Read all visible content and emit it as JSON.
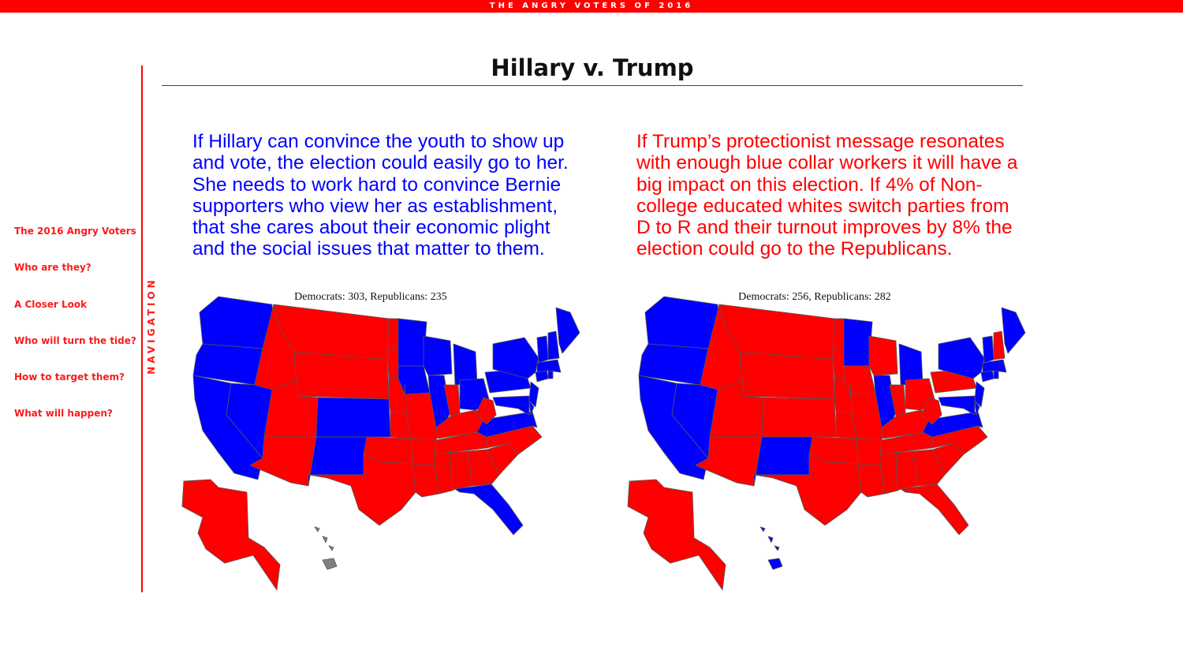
{
  "header": {
    "banner": "THE ANGRY VOTERS OF 2016",
    "title": "Hillary v. Trump"
  },
  "navigation": {
    "label": "NAVIGATION",
    "items": [
      {
        "label": "The 2016 Angry Voters"
      },
      {
        "label": "Who are they?"
      },
      {
        "label": "A Closer Look"
      },
      {
        "label": "Who will turn the tide?"
      },
      {
        "label": "How to target them?"
      },
      {
        "label": "What will happen?"
      }
    ]
  },
  "colors": {
    "democrat": "#0000ff",
    "republican": "#ff0000",
    "unassigned": "#808080",
    "accent": "#ff0000"
  },
  "scenarios": [
    {
      "text": "If Hillary can convince the youth to show up and vote, the election could easily go to her. She needs to work hard to convince Bernie supporters who view her as establishment, that she cares about their economic plight and the social issues that matter to them.",
      "caption": "Democrats: 303, Republicans: 235",
      "democrats": 303,
      "republicans": 235,
      "map": {
        "WA": "D",
        "OR": "D",
        "CA": "D",
        "NV": "D",
        "CO": "D",
        "NM": "D",
        "MN": "D",
        "IA": "D",
        "WI": "D",
        "IL": "D",
        "MI": "D",
        "OH": "D",
        "PA": "D",
        "VA": "D",
        "FL": "D",
        "NY": "D",
        "VT": "D",
        "NH": "D",
        "ME": "D",
        "MA": "D",
        "CT": "D",
        "RI": "D",
        "NJ": "D",
        "DE": "D",
        "MD": "D",
        "ID": "R",
        "MT": "R",
        "WY": "R",
        "UT": "R",
        "AZ": "R",
        "ND": "R",
        "SD": "R",
        "NE": "R",
        "KS": "R",
        "OK": "R",
        "TX": "R",
        "MO": "R",
        "AR": "R",
        "LA": "R",
        "MS": "R",
        "AL": "R",
        "GA": "R",
        "SC": "R",
        "NC": "R",
        "TN": "R",
        "KY": "R",
        "IN": "R",
        "WV": "R",
        "AK": "R",
        "HI": "none"
      }
    },
    {
      "text": "If Trump’s protectionist message resonates with enough blue collar workers it will have a big impact on this election. If 4% of Non-college educated whites switch parties from D to R and their turnout improves by 8% the election could go to the Republicans.",
      "caption": "Democrats: 256, Republicans: 282",
      "democrats": 256,
      "republicans": 282,
      "map": {
        "WA": "D",
        "OR": "D",
        "CA": "D",
        "NV": "D",
        "NM": "D",
        "MN": "D",
        "IL": "D",
        "MI": "D",
        "VA": "D",
        "NY": "D",
        "VT": "D",
        "ME": "D",
        "MA": "D",
        "CT": "D",
        "RI": "D",
        "NJ": "D",
        "DE": "D",
        "MD": "D",
        "HI": "D",
        "ID": "R",
        "MT": "R",
        "WY": "R",
        "UT": "R",
        "AZ": "R",
        "CO": "R",
        "ND": "R",
        "SD": "R",
        "NE": "R",
        "KS": "R",
        "OK": "R",
        "TX": "R",
        "MO": "R",
        "AR": "R",
        "LA": "R",
        "MS": "R",
        "AL": "R",
        "GA": "R",
        "SC": "R",
        "NC": "R",
        "TN": "R",
        "KY": "R",
        "IN": "R",
        "WV": "R",
        "IA": "R",
        "WI": "R",
        "OH": "R",
        "PA": "R",
        "FL": "R",
        "NH": "R",
        "AK": "R"
      }
    }
  ]
}
